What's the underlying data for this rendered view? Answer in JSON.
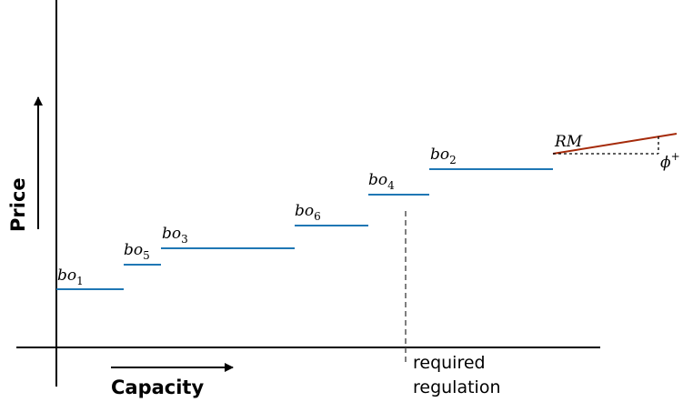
{
  "axes": {
    "x_title": "Capacity",
    "y_title": "Price"
  },
  "bids": [
    {
      "name": "bo",
      "sub": "1"
    },
    {
      "name": "bo",
      "sub": "5"
    },
    {
      "name": "bo",
      "sub": "3"
    },
    {
      "name": "bo",
      "sub": "6"
    },
    {
      "name": "bo",
      "sub": "4"
    },
    {
      "name": "bo",
      "sub": "2"
    }
  ],
  "required_regulation": {
    "line1": "required",
    "line2": "regulation"
  },
  "rm": {
    "label": "RM",
    "phi_label": "ϕ",
    "phi_sup": "+"
  },
  "colors": {
    "bid_line": "#1f77b4",
    "rm_line": "#a52a0a",
    "axis": "#000000"
  }
}
